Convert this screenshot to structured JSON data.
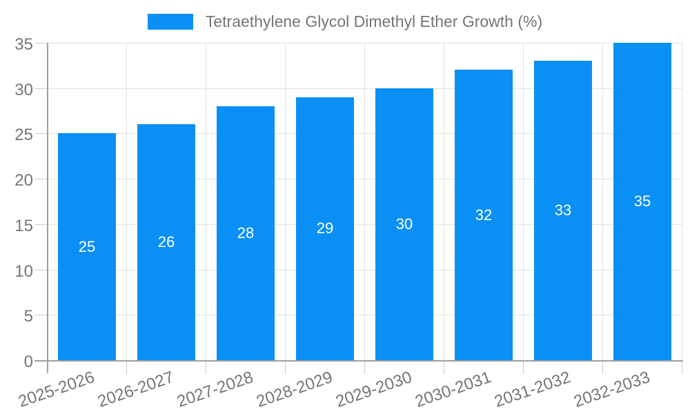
{
  "chart_data": {
    "type": "bar",
    "title": "Tetraethylene Glycol Dimethyl Ether Growth (%)",
    "categories": [
      "2025-2026",
      "2026-2027",
      "2027-2028",
      "2028-2029",
      "2029-2030",
      "2030-2031",
      "2031-2032",
      "2032-2033"
    ],
    "values": [
      25,
      26,
      28,
      29,
      30,
      32,
      33,
      35
    ],
    "xlabel": "",
    "ylabel": "",
    "ylim": [
      0,
      35
    ],
    "ytick_step": 5,
    "yticks": [
      0,
      5,
      10,
      15,
      20,
      25,
      30,
      35
    ],
    "grid": true,
    "legend_position": "top-center",
    "bar_labels_inside": true,
    "bar_label_position": "center",
    "colors": {
      "bar": "#0a90f5",
      "bar_label": "#ffffff",
      "axis_text": "#757575",
      "legend_text": "#757575",
      "gridline": "#e2e2e2",
      "tick": "#cccccc",
      "axis_line": "#9e9e9e",
      "background": "#ffffff"
    }
  }
}
